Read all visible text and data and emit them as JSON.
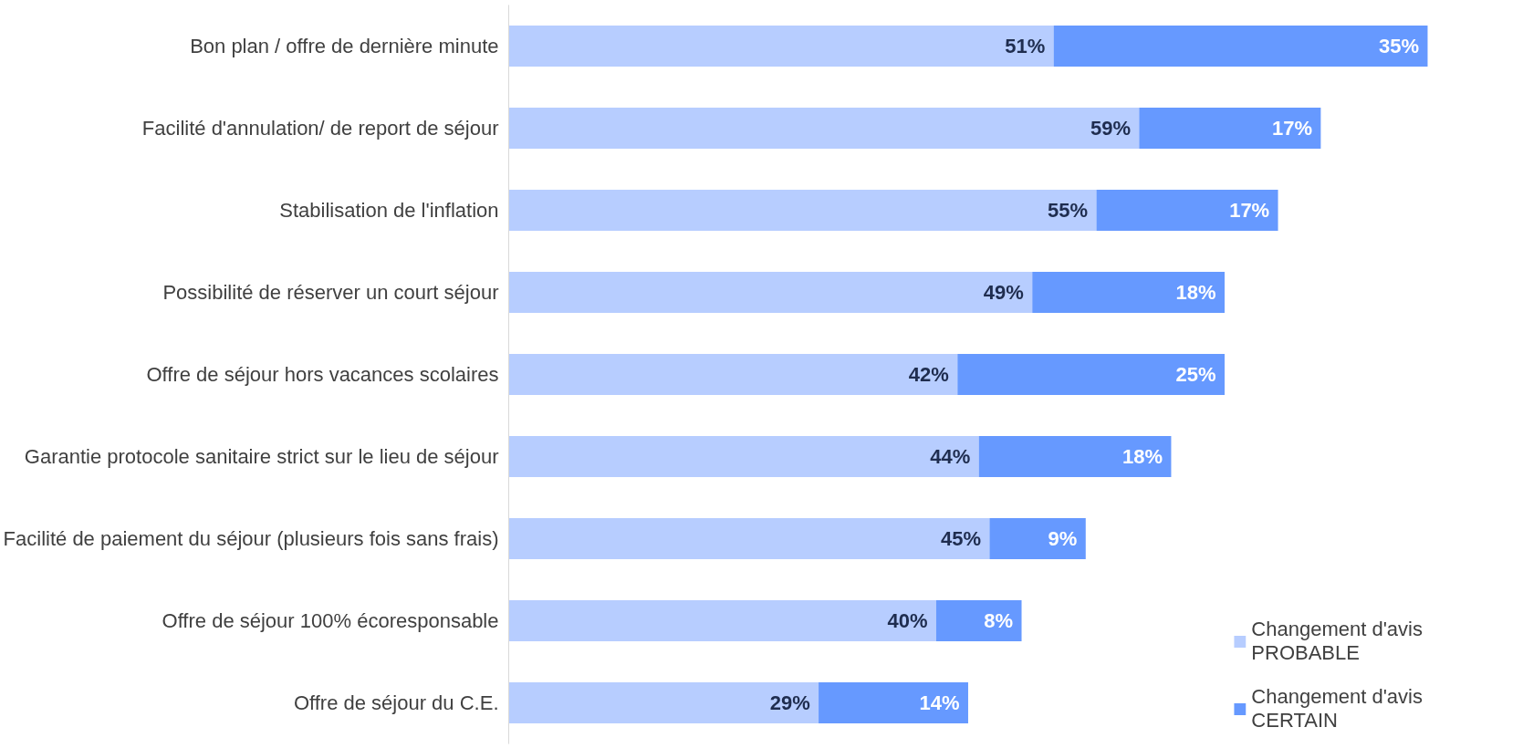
{
  "chart_data": {
    "type": "bar",
    "orientation": "horizontal",
    "stacked": true,
    "grid": false,
    "legend": "bottom right",
    "categories": [
      "Bon plan / offre de dernière minute",
      "Facilité d'annulation/ de report de séjour",
      "Stabilisation de l'inflation",
      "Possibilité de réserver un court séjour",
      "Offre de séjour hors vacances scolaires",
      "Garantie protocole sanitaire strict sur le lieu de séjour",
      "Facilité de paiement du séjour (plusieurs fois sans frais)",
      "Offre de séjour 100% écoresponsable",
      "Offre de séjour du C.E."
    ],
    "series": [
      {
        "name": "Changement d'avis\nPROBABLE",
        "color": "#b7cdff",
        "values": [
          51,
          59,
          55,
          49,
          42,
          44,
          45,
          40,
          29
        ],
        "value_labels": [
          "51%",
          "59%",
          "55%",
          "49%",
          "42%",
          "44%",
          "45%",
          "40%",
          "29%"
        ]
      },
      {
        "name": "Changement d'avis\nCERTAIN",
        "color": "#6699ff",
        "values": [
          35,
          17,
          17,
          18,
          25,
          18,
          9,
          8,
          14
        ],
        "value_labels": [
          "35%",
          "17%",
          "17%",
          "18%",
          "25%",
          "18%",
          "9%",
          "8%",
          "14%"
        ]
      }
    ]
  }
}
